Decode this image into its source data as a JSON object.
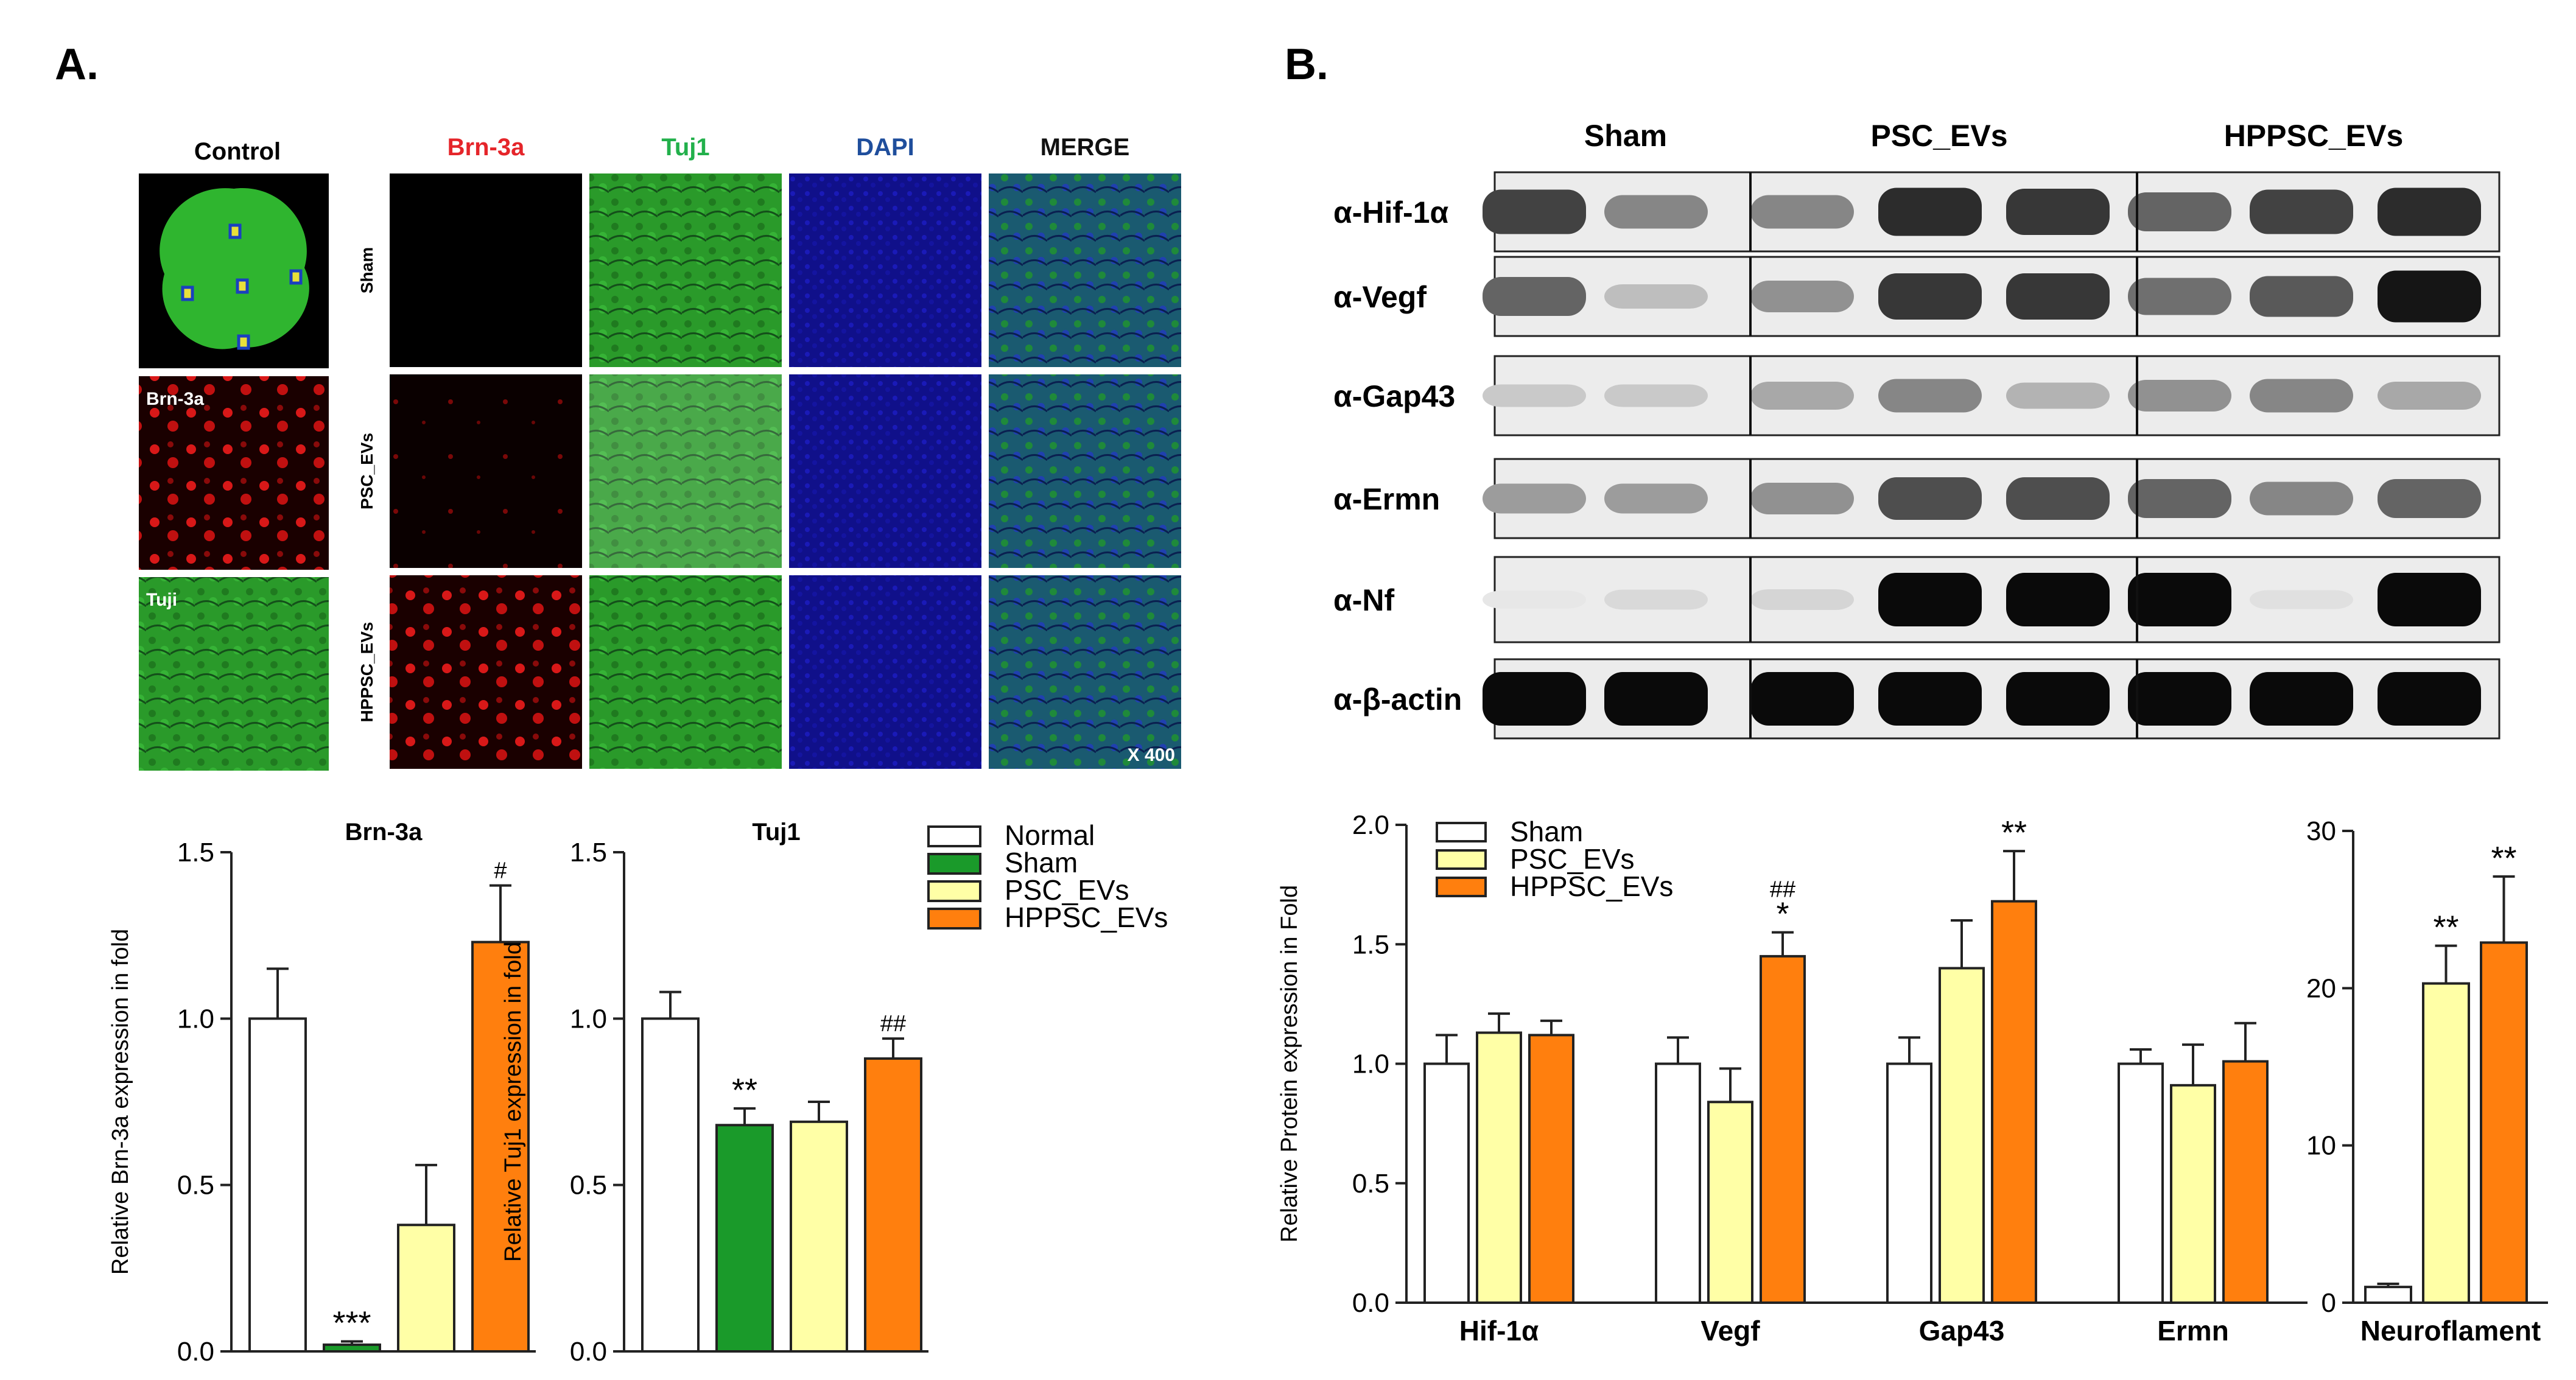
{
  "panelA": {
    "label": "A.",
    "control_header": "Control",
    "channel_headers": [
      {
        "text": "Brn-3a",
        "color": "#e5252a"
      },
      {
        "text": "Tuj1",
        "color": "#22b04b"
      },
      {
        "text": "DAPI",
        "color": "#1f4e9c"
      },
      {
        "text": "MERGE",
        "color": "#111111"
      }
    ],
    "row_labels": [
      "Sham",
      "PSC_EVs",
      "HPPSC_EVs"
    ],
    "control_labels": [
      "Brn-3a",
      "Tuji"
    ],
    "magnification": "X 400",
    "legend": [
      "Normal",
      "Sham",
      "PSC_EVs",
      "HPPSC_EVs"
    ]
  },
  "panelB": {
    "label": "B.",
    "groups": [
      "Sham",
      "PSC_EVs",
      "HPPSC_EVs"
    ],
    "blot_labels": [
      "α-Hif-1α",
      "α-Vegf",
      "α-Gap43",
      "α-Ermn",
      "α-Nf",
      "α-β-actin"
    ],
    "blot_intensity": [
      [
        0.75,
        0.45,
        0.45,
        0.85,
        0.8,
        0.6,
        0.75,
        0.85
      ],
      [
        0.6,
        0.2,
        0.4,
        0.8,
        0.8,
        0.55,
        0.65,
        0.95
      ],
      [
        0.15,
        0.15,
        0.3,
        0.45,
        0.25,
        0.4,
        0.45,
        0.3
      ],
      [
        0.35,
        0.35,
        0.4,
        0.7,
        0.7,
        0.6,
        0.45,
        0.6
      ],
      [
        0.02,
        0.08,
        0.1,
        1.0,
        1.0,
        1.0,
        0.05,
        1.0
      ],
      [
        1.0,
        1.0,
        1.0,
        1.0,
        1.0,
        1.0,
        1.0,
        1.0
      ]
    ],
    "legend": [
      "Sham",
      "PSC_EVs",
      "HPPSC_EVs"
    ]
  },
  "colors": {
    "normal": "#ffffff",
    "sham": "#1a9a2a",
    "psc": "#ffffa6",
    "hppsc": "#ff7f0e"
  },
  "chart_data": [
    {
      "type": "bar",
      "title": "Brn-3a",
      "ylabel": "Relative Brn-3a expression in fold",
      "ylim": [
        0,
        1.5
      ],
      "yticks": [
        "0.0",
        "0.5",
        "1.0",
        "1.5"
      ],
      "categories": [
        "Normal",
        "Sham",
        "PSC_EVs",
        "HPPSC_EVs"
      ],
      "values": [
        1.0,
        0.02,
        0.38,
        1.23
      ],
      "errors": [
        0.15,
        0.01,
        0.18,
        0.17
      ],
      "annotations": [
        "",
        "***",
        "",
        "#"
      ]
    },
    {
      "type": "bar",
      "title": "Tuj1",
      "ylabel": "Relative Tuj1 expression in fold",
      "ylim": [
        0,
        1.5
      ],
      "yticks": [
        "0.0",
        "0.5",
        "1.0",
        "1.5"
      ],
      "categories": [
        "Normal",
        "Sham",
        "PSC_EVs",
        "HPPSC_EVs"
      ],
      "values": [
        1.0,
        0.68,
        0.69,
        0.88
      ],
      "errors": [
        0.08,
        0.05,
        0.06,
        0.06
      ],
      "annotations": [
        "",
        "**",
        "",
        "##"
      ]
    },
    {
      "type": "bar",
      "ylabel": "Relative Protein expression in Fold",
      "ylim": [
        0,
        2.0
      ],
      "yticks": [
        "0.0",
        "0.5",
        "1.0",
        "1.5",
        "2.0"
      ],
      "categories": [
        "Hif-1α",
        "Vegf",
        "Gap43",
        "Ermn"
      ],
      "series": [
        {
          "name": "Sham",
          "values": [
            1.0,
            1.0,
            1.0,
            1.0
          ],
          "errors": [
            0.12,
            0.11,
            0.11,
            0.06
          ],
          "annotations": [
            "",
            "",
            "",
            ""
          ]
        },
        {
          "name": "PSC_EVs",
          "values": [
            1.13,
            0.84,
            1.4,
            0.91
          ],
          "errors": [
            0.08,
            0.14,
            0.2,
            0.17
          ],
          "annotations": [
            "",
            "",
            "",
            ""
          ]
        },
        {
          "name": "HPPSC_EVs",
          "values": [
            1.12,
            1.45,
            1.68,
            1.01
          ],
          "errors": [
            0.06,
            0.1,
            0.21,
            0.16
          ],
          "annotations": [
            "",
            "##\n*",
            "**",
            ""
          ]
        }
      ]
    },
    {
      "type": "bar",
      "ylim": [
        0,
        30
      ],
      "yticks": [
        "0",
        "10",
        "20",
        "30"
      ],
      "categories": [
        "Neuroflament"
      ],
      "series": [
        {
          "name": "Sham",
          "values": [
            1.0
          ],
          "errors": [
            0.2
          ],
          "annotations": [
            ""
          ]
        },
        {
          "name": "PSC_EVs",
          "values": [
            20.3
          ],
          "errors": [
            2.4
          ],
          "annotations": [
            "**"
          ]
        },
        {
          "name": "HPPSC_EVs",
          "values": [
            22.9
          ],
          "errors": [
            4.2
          ],
          "annotations": [
            "**"
          ]
        }
      ]
    }
  ]
}
